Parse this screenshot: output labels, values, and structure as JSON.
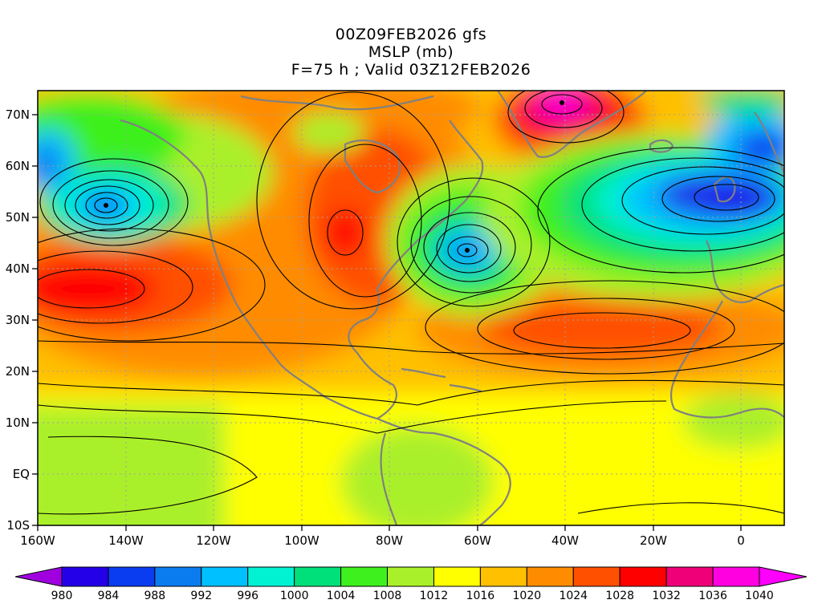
{
  "title": {
    "line1": "00Z09FEB2026 gfs",
    "line2": "MSLP (mb)",
    "line3": "F=75 h ; Valid 03Z12FEB2026"
  },
  "map": {
    "lon_range": [
      -160,
      10
    ],
    "lat_range": [
      -10,
      75
    ],
    "lon_ticks": [
      "160W",
      "140W",
      "120W",
      "100W",
      "80W",
      "60W",
      "40W",
      "20W",
      "0"
    ],
    "lat_ticks": [
      "10S",
      "EQ",
      "10N",
      "20N",
      "30N",
      "40N",
      "50N",
      "60N",
      "70N"
    ],
    "field": "MSLP",
    "systems": [
      {
        "type": "low",
        "lon": -145,
        "lat": 52
      },
      {
        "type": "low",
        "lon": -60,
        "lat": 44
      },
      {
        "type": "low",
        "lon": -10,
        "lat": 53
      },
      {
        "type": "high",
        "lon": -150,
        "lat": 37
      },
      {
        "type": "high",
        "lon": -40,
        "lat": 71
      },
      {
        "type": "high",
        "lon": -88,
        "lat": 47
      },
      {
        "type": "high",
        "lon": -30,
        "lat": 29
      }
    ]
  },
  "colorbar": {
    "labels": [
      "980",
      "984",
      "988",
      "992",
      "996",
      "1000",
      "1004",
      "1008",
      "1012",
      "1016",
      "1020",
      "1024",
      "1028",
      "1032",
      "1036",
      "1040"
    ],
    "colors": [
      "#a000e0",
      "#2400e8",
      "#0a3cf0",
      "#0a7cf0",
      "#00c0ff",
      "#00f2d2",
      "#00e07a",
      "#3ef01e",
      "#aaf02a",
      "#ffff00",
      "#ffc000",
      "#ff8c00",
      "#ff5000",
      "#ff0000",
      "#f00078",
      "#ff00e0",
      "#ff00ff"
    ]
  }
}
